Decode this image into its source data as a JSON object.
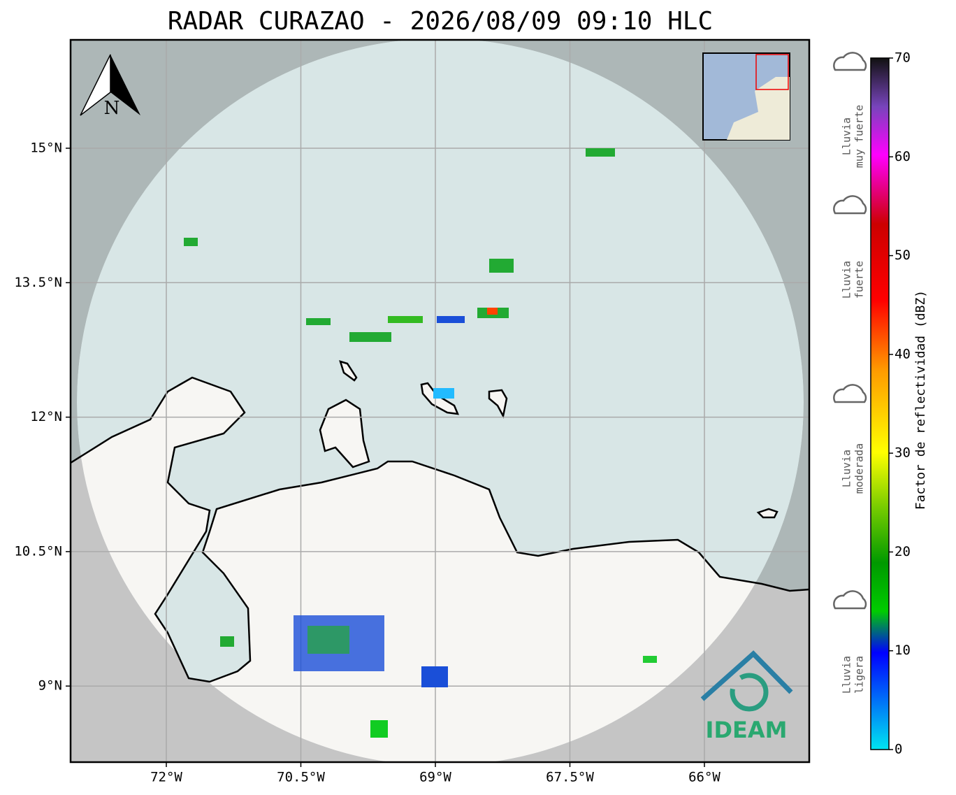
{
  "title": "RADAR CURAZAO - 2026/08/09 09:10 HLC",
  "map": {
    "lon_labels": [
      "72°W",
      "70.5°W",
      "69°W",
      "67.5°W",
      "66°W"
    ],
    "lat_labels": [
      "15°N",
      "13.5°N",
      "12°N",
      "10.5°N",
      "9°N"
    ]
  },
  "north": "N",
  "logo": "IDEAM",
  "colorbar": {
    "label": "Factor de reflectividad (dBZ)",
    "lim": [
      0,
      70
    ],
    "ticks": [
      0,
      10,
      20,
      30,
      40,
      50,
      60,
      70
    ]
  },
  "legend": [
    {
      "lines": [
        "Lluvia",
        "muy fuerte"
      ]
    },
    {
      "lines": [
        "Lluvia",
        "fuerte"
      ]
    },
    {
      "lines": [
        "Lluvia",
        "moderada"
      ]
    },
    {
      "lines": [
        "Lluvia",
        "ligera"
      ]
    }
  ]
}
